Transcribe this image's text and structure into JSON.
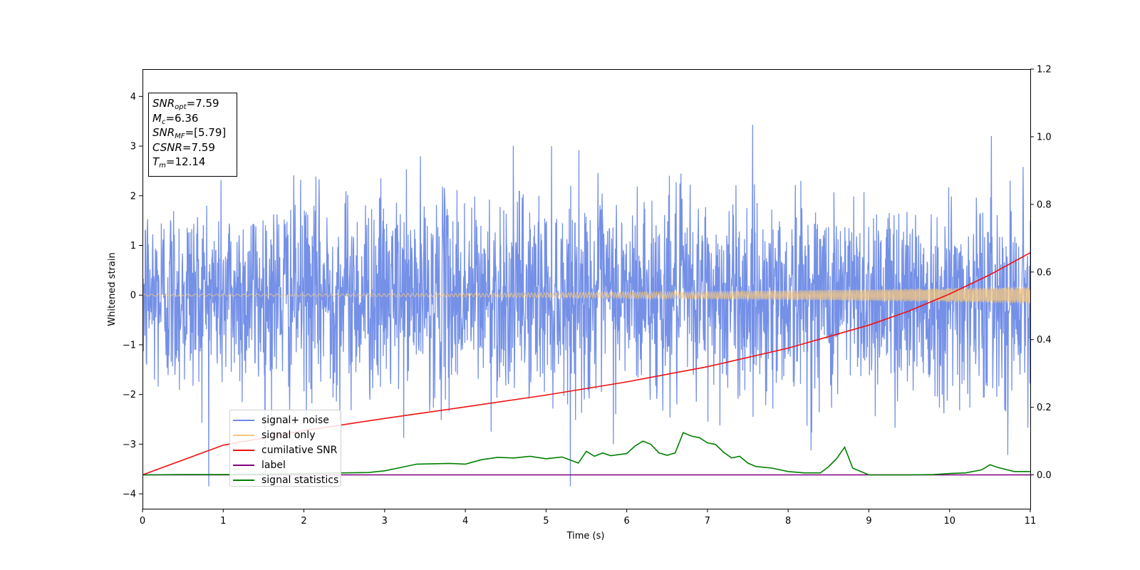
{
  "chart_data": {
    "type": "line",
    "xlabel": "Time (s)",
    "ylabel": "Whitened strain",
    "xlim": [
      0,
      11
    ],
    "ylim": [
      -4.3,
      4.55
    ],
    "y2lim": [
      -0.1,
      1.2
    ],
    "xticks": [
      "0",
      "1",
      "2",
      "3",
      "4",
      "5",
      "6",
      "7",
      "8",
      "9",
      "10",
      "11"
    ],
    "yticks": [
      "−4",
      "−3",
      "−2",
      "−1",
      "0",
      "1",
      "2",
      "3",
      "4"
    ],
    "y2ticks": [
      "0.0",
      "0.2",
      "0.4",
      "0.6",
      "0.8",
      "1.0",
      "1.2"
    ],
    "grid": false,
    "legend_position": "lower-left",
    "series": [
      {
        "name": "signal+ noise",
        "color": "#6d8ae6",
        "axis": "left",
        "kind": "gaussian-noise",
        "std": 1.0,
        "min": -3.85,
        "max": 4.18
      },
      {
        "name": "signal only",
        "color": "#f5c77e",
        "axis": "left",
        "kind": "chirp",
        "amplitude_start": 0.02,
        "amplitude_end": 0.17
      },
      {
        "name": "cumilative SNR",
        "color": "#ee1111",
        "axis": "right",
        "x": [
          0,
          1,
          2,
          3,
          4,
          5,
          6,
          7,
          8,
          9,
          9.5,
          10,
          10.5,
          11
        ],
        "y": [
          0.0,
          0.088,
          0.131,
          0.167,
          0.201,
          0.236,
          0.275,
          0.32,
          0.375,
          0.443,
          0.485,
          0.535,
          0.592,
          0.657
        ]
      },
      {
        "name": "label",
        "color": "#800080",
        "axis": "right",
        "x": [
          0,
          11
        ],
        "y": [
          0.0,
          0.0
        ]
      },
      {
        "name": "signal statistics",
        "color": "#008000",
        "axis": "right",
        "x": [
          0,
          0.5,
          1,
          1.5,
          2,
          2.5,
          2.8,
          3.0,
          3.2,
          3.4,
          3.6,
          3.8,
          4.0,
          4.2,
          4.4,
          4.6,
          4.8,
          5.0,
          5.2,
          5.4,
          5.5,
          5.6,
          5.7,
          5.8,
          5.9,
          6.0,
          6.1,
          6.2,
          6.3,
          6.4,
          6.5,
          6.6,
          6.7,
          6.8,
          6.9,
          7.0,
          7.1,
          7.2,
          7.3,
          7.4,
          7.5,
          7.6,
          7.8,
          8.0,
          8.2,
          8.4,
          8.5,
          8.6,
          8.7,
          8.8,
          9.0,
          9.5,
          9.8,
          10.0,
          10.2,
          10.4,
          10.5,
          10.6,
          10.8,
          11.0
        ],
        "y": [
          0.0,
          0.001,
          0.001,
          0.002,
          0.004,
          0.006,
          0.007,
          0.012,
          0.022,
          0.032,
          0.033,
          0.034,
          0.032,
          0.045,
          0.052,
          0.05,
          0.055,
          0.048,
          0.053,
          0.035,
          0.07,
          0.055,
          0.065,
          0.057,
          0.06,
          0.063,
          0.085,
          0.1,
          0.09,
          0.065,
          0.058,
          0.065,
          0.125,
          0.115,
          0.11,
          0.095,
          0.09,
          0.067,
          0.05,
          0.055,
          0.035,
          0.025,
          0.02,
          0.01,
          0.006,
          0.006,
          0.024,
          0.048,
          0.082,
          0.02,
          0.0,
          0.0,
          0.001,
          0.004,
          0.006,
          0.015,
          0.03,
          0.022,
          0.01,
          0.01
        ]
      }
    ]
  },
  "info": {
    "snr_opt": {
      "sym": "SNR",
      "sub": "opt",
      "value": "=7.59"
    },
    "mc": {
      "sym": "M",
      "sub": "c",
      "value": "=6.36"
    },
    "snr_mf": {
      "sym": "SNR",
      "sub": "MF",
      "value": "=[5.79]"
    },
    "csnr": {
      "sym": "CSNR",
      "value": "=7.59"
    },
    "tm": {
      "sym": "T",
      "sub": "m",
      "value": "=12.14"
    }
  }
}
